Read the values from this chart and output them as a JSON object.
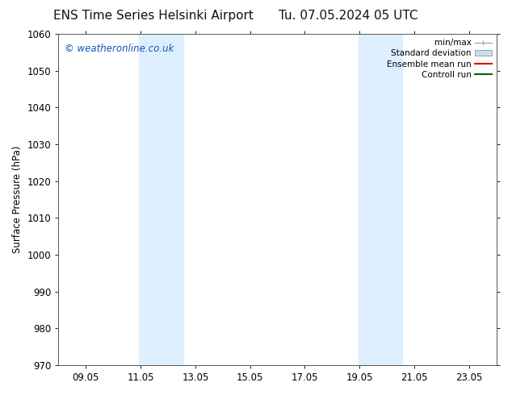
{
  "title_left": "ENS Time Series Helsinki Airport",
  "title_right": "Tu. 07.05.2024 05 UTC",
  "ylabel": "Surface Pressure (hPa)",
  "ylim": [
    970,
    1060
  ],
  "yticks": [
    970,
    980,
    990,
    1000,
    1010,
    1020,
    1030,
    1040,
    1050,
    1060
  ],
  "xtick_labels": [
    "09.05",
    "11.05",
    "13.05",
    "15.05",
    "17.05",
    "19.05",
    "21.05",
    "23.05"
  ],
  "xtick_positions": [
    1.0,
    3.0,
    5.0,
    7.0,
    9.0,
    11.0,
    13.0,
    15.0
  ],
  "xlim": [
    0,
    16
  ],
  "shaded_bands": [
    {
      "x_start": 2.95,
      "x_end": 4.55
    },
    {
      "x_start": 10.95,
      "x_end": 12.55
    }
  ],
  "shaded_color": "#ddeeff",
  "watermark_text": "© weatheronline.co.uk",
  "watermark_color": "#1155bb",
  "background_color": "#ffffff",
  "legend_entries": [
    {
      "label": "min/max",
      "color": "#aaaaaa",
      "style": "line_with_caps"
    },
    {
      "label": "Standard deviation",
      "color": "#ccddee",
      "style": "filled_box"
    },
    {
      "label": "Ensemble mean run",
      "color": "#dd0000",
      "style": "line"
    },
    {
      "label": "Controll run",
      "color": "#006600",
      "style": "line"
    }
  ],
  "grid_color": "#cccccc",
  "spine_color": "#555555",
  "title_fontsize": 11,
  "tick_fontsize": 8.5,
  "legend_fontsize": 7.5,
  "watermark_fontsize": 8.5
}
